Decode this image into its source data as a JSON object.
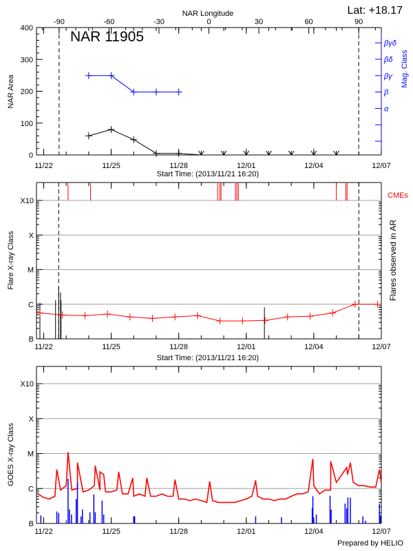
{
  "header": {
    "top_axis_title": "NAR Longitude",
    "latitude": "Lat: +18.17",
    "region_label": "NAR 11905",
    "footer": "Prepared by HELIO"
  },
  "colors": {
    "area": "#000000",
    "mag": "#0000ff",
    "cme": "#ff0000",
    "flare_avg": "#ff0000",
    "flares": "#000000",
    "goes_long": "#ff0000",
    "goes_short": "#0000ff",
    "grid": "#a0a0a0"
  },
  "chart_data": [
    {
      "type": "line",
      "panel": "nar",
      "xlabel": "Start Time: (2013/11/21 16:20)",
      "ylabel": "NAR Area",
      "y2label": "Mag. Class",
      "x2label": "NAR Longitude",
      "xlim": [
        "11/21 16:20",
        "12/07 00:00"
      ],
      "ylim": [
        0,
        400
      ],
      "xticks": [
        "11/22",
        "11/25",
        "11/28",
        "12/01",
        "12/04",
        "12/07"
      ],
      "yticks": [
        "0",
        "100",
        "200",
        "300",
        "400"
      ],
      "x2ticks": [
        "-90",
        "-60",
        "-30",
        "0",
        "30",
        "60",
        "90"
      ],
      "x2lim": [
        -103.6,
        103.6
      ],
      "limb_longitudes": [
        -90,
        90
      ],
      "mag_ticks": [
        "",
        "",
        "α",
        "β",
        "βγ",
        "βδ",
        "βγδ"
      ],
      "area": [
        [
          "11/24 00:00",
          60
        ],
        [
          "11/25 00:00",
          80
        ],
        [
          "11/26 00:00",
          48
        ],
        [
          "11/27 00:00",
          5
        ],
        [
          "11/28 00:00",
          5
        ]
      ],
      "area_after": [
        "11/29 00:00",
        "11/30 00:00",
        "12/01 00:00",
        "12/02 00:00",
        "12/03 00:00",
        "12/04 00:00",
        "12/05 00:00"
      ],
      "mag_class": [
        [
          "11/24 00:00",
          "βγ"
        ],
        [
          "11/25 00:00",
          "βγ"
        ],
        [
          "11/26 00:00",
          "β"
        ],
        [
          "11/27 00:00",
          "β"
        ],
        [
          "11/28 00:00",
          "β"
        ]
      ]
    },
    {
      "type": "line",
      "panel": "flares",
      "xlabel": "Start Time: (2013/11/21 16:20)",
      "ylabel": "Flare X-ray Class",
      "y2label": "Flares observed in AR",
      "cme_label": "CMEs",
      "xlim": [
        "11/21 16:20",
        "12/07 00:00"
      ],
      "yscale": "log",
      "ylim": [
        1e-07,
        0.0001
      ],
      "yticks": [
        [
          "B",
          1e-07
        ],
        [
          "C",
          1e-06
        ],
        [
          "M",
          1e-05
        ],
        [
          "X",
          0.0001
        ],
        [
          "X10",
          0.001
        ]
      ],
      "grid": true,
      "xticks": [
        "11/22",
        "11/25",
        "11/28",
        "12/01",
        "12/04",
        "12/07"
      ],
      "limb_times": [
        "11/22 16:00",
        "12/06 00:00"
      ],
      "avg_flux": [
        [
          "11/21 20:00",
          5.6e-07
        ],
        [
          "11/22 20:00",
          4.9e-07
        ],
        [
          "11/23 20:00",
          4.7e-07
        ],
        [
          "11/24 20:00",
          5.2e-07
        ],
        [
          "11/25 20:00",
          4.3e-07
        ],
        [
          "11/26 20:00",
          3.9e-07
        ],
        [
          "11/27 20:00",
          4.3e-07
        ],
        [
          "11/28 20:00",
          4.7e-07
        ],
        [
          "11/29 20:00",
          3.3e-07
        ],
        [
          "11/30 20:00",
          3.3e-07
        ],
        [
          "12/01 20:00",
          3.4e-07
        ],
        [
          "12/02 20:00",
          4.3e-07
        ],
        [
          "12/03 20:00",
          4.5e-07
        ],
        [
          "12/04 20:00",
          5.6e-07
        ],
        [
          "12/05 20:00",
          1e-06
        ],
        [
          "12/06 20:00",
          1e-06
        ]
      ],
      "flares": [
        [
          "11/21 20:00",
          1.1e-06
        ],
        [
          "11/22 12:40",
          1.3e-06
        ],
        [
          "11/22 16:00",
          3.2e-06
        ],
        [
          "11/22 18:00",
          2.2e-06
        ],
        [
          "11/22 18:30",
          1.3e-06
        ],
        [
          "12/01 19:20",
          8.2e-07
        ]
      ],
      "cmes": [
        "11/23 02:00",
        "11/24 02:00",
        "11/29 17:30",
        "11/29 19:50",
        "11/29 21:10",
        "11/30 12:30",
        "11/30 14:00",
        "11/30 15:40",
        "12/05 00:00",
        "12/05 10:10",
        "12/05 11:30"
      ]
    },
    {
      "type": "line",
      "panel": "goes",
      "ylabel": "GOES X-ray Class",
      "xlim": [
        "11/21 16:20",
        "12/07 00:00"
      ],
      "yscale": "log",
      "ylim": [
        1e-07,
        0.0001
      ],
      "yticks": [
        [
          "B",
          1e-07
        ],
        [
          "C",
          1e-06
        ],
        [
          "M",
          1e-05
        ],
        [
          "X",
          0.0001
        ],
        [
          "X10",
          0.001
        ]
      ],
      "grid": true,
      "xticks": [
        "11/22",
        "11/25",
        "11/28",
        "12/01",
        "12/04",
        "12/07"
      ],
      "long_channel": [
        [
          "11/21 18:00",
          7e-07
        ],
        [
          "11/22 00:00",
          5.5e-07
        ],
        [
          "11/22 06:00",
          5e-07
        ],
        [
          "11/22 12:00",
          6e-07
        ],
        [
          "11/22 18:00",
          9e-07
        ],
        [
          "11/23 00:00",
          1.2e-06
        ],
        [
          "11/23 06:00",
          9e-07
        ],
        [
          "11/23 12:00",
          1e-06
        ],
        [
          "11/23 18:00",
          8e-07
        ],
        [
          "11/24 00:00",
          9e-07
        ],
        [
          "11/24 06:00",
          1.2e-06
        ],
        [
          "11/24 12:00",
          9e-07
        ],
        [
          "11/24 18:00",
          8e-07
        ],
        [
          "11/25 00:00",
          8e-07
        ],
        [
          "11/25 06:00",
          9e-07
        ],
        [
          "11/25 12:00",
          7e-07
        ],
        [
          "11/25 18:00",
          7e-07
        ],
        [
          "11/26 00:00",
          6e-07
        ],
        [
          "11/26 06:00",
          7e-07
        ],
        [
          "11/26 12:00",
          6e-07
        ],
        [
          "11/26 18:00",
          6e-07
        ],
        [
          "11/27 00:00",
          6e-07
        ],
        [
          "11/27 06:00",
          7e-07
        ],
        [
          "11/27 12:00",
          6e-07
        ],
        [
          "11/27 18:00",
          6e-07
        ],
        [
          "11/28 00:00",
          5e-07
        ],
        [
          "11/28 06:00",
          5e-07
        ],
        [
          "11/28 12:00",
          4.5e-07
        ],
        [
          "11/28 18:00",
          5e-07
        ],
        [
          "11/29 00:00",
          4.5e-07
        ],
        [
          "11/29 06:00",
          4e-07
        ],
        [
          "11/29 12:00",
          4.5e-07
        ],
        [
          "11/29 18:00",
          4e-07
        ],
        [
          "11/30 00:00",
          4e-07
        ],
        [
          "11/30 06:00",
          4e-07
        ],
        [
          "11/30 12:00",
          4e-07
        ],
        [
          "11/30 18:00",
          4.5e-07
        ],
        [
          "12/01 00:00",
          5e-07
        ],
        [
          "12/01 06:00",
          6e-07
        ],
        [
          "12/01 12:00",
          6e-07
        ],
        [
          "12/01 18:00",
          5e-07
        ],
        [
          "12/02 00:00",
          5e-07
        ],
        [
          "12/02 06:00",
          4.5e-07
        ],
        [
          "12/02 12:00",
          5e-07
        ],
        [
          "12/02 18:00",
          5e-07
        ],
        [
          "12/03 00:00",
          6e-07
        ],
        [
          "12/03 06:00",
          7e-07
        ],
        [
          "12/03 12:00",
          7e-07
        ],
        [
          "12/03 18:00",
          8e-07
        ],
        [
          "12/04 00:00",
          1.2e-06
        ],
        [
          "12/04 06:00",
          7e-07
        ],
        [
          "12/04 12:00",
          9e-07
        ],
        [
          "12/04 18:00",
          9e-07
        ],
        [
          "12/05 00:00",
          1.5e-06
        ],
        [
          "12/05 06:00",
          2.5e-06
        ],
        [
          "12/05 12:00",
          2.5e-06
        ],
        [
          "12/05 18:00",
          1.5e-06
        ],
        [
          "12/06 00:00",
          1.2e-06
        ],
        [
          "12/06 06:00",
          1.2e-06
        ],
        [
          "12/06 12:00",
          1.1e-06
        ],
        [
          "12/06 18:00",
          1.1e-06
        ],
        [
          "12/06 23:50",
          1.5e-06
        ]
      ],
      "long_channel_peaks": [
        [
          "11/22 14:00",
          3.5e-06
        ],
        [
          "11/23 02:00",
          1.1e-05
        ],
        [
          "11/23 12:00",
          5.5e-06
        ],
        [
          "11/24 07:00",
          4.5e-06
        ],
        [
          "11/24 12:00",
          3e-06
        ],
        [
          "11/24 16:00",
          2.5e-06
        ],
        [
          "11/25 08:00",
          3e-06
        ],
        [
          "11/25 23:00",
          2e-06
        ],
        [
          "11/26 14:00",
          2e-06
        ],
        [
          "11/27 20:00",
          1.8e-06
        ],
        [
          "11/29 09:00",
          1.6e-06
        ],
        [
          "12/01 10:00",
          1.7e-06
        ],
        [
          "12/03 23:00",
          7e-06
        ],
        [
          "12/04 18:00",
          6e-06
        ],
        [
          "12/05 11:00",
          4e-06
        ],
        [
          "12/05 15:00",
          5.5e-06
        ],
        [
          "12/06 22:00",
          3.5e-06
        ]
      ],
      "short_channel_spikes": [
        [
          "11/21 21:00",
          1.7e-07
        ],
        [
          "11/22 14:00",
          2.2e-07
        ],
        [
          "11/22 16:00",
          2e-07
        ],
        [
          "11/23 02:00",
          1.9e-06
        ],
        [
          "11/23 03:30",
          2.5e-07
        ],
        [
          "11/23 05:40",
          1.8e-07
        ],
        [
          "11/23 10:40",
          5e-07
        ],
        [
          "11/23 12:00",
          1.5e-06
        ],
        [
          "11/23 15:50",
          1.6e-07
        ],
        [
          "11/23 17:20",
          2.5e-07
        ],
        [
          "11/24 01:20",
          2.1e-07
        ],
        [
          "11/24 05:30",
          6.8e-07
        ],
        [
          "11/24 07:00",
          2.1e-07
        ],
        [
          "11/24 14:20",
          4.5e-07
        ],
        [
          "11/24 16:00",
          1.8e-07
        ],
        [
          "11/26 00:00",
          1.6e-07
        ],
        [
          "11/26 01:00",
          1.6e-07
        ],
        [
          "12/01 10:00",
          1.6e-07
        ],
        [
          "12/02 13:30",
          1.5e-07
        ],
        [
          "12/03 22:20",
          2.8e-07
        ],
        [
          "12/03 23:00",
          6e-07
        ],
        [
          "12/04 02:40",
          1.8e-07
        ],
        [
          "12/04 17:20",
          6.2e-07
        ],
        [
          "12/04 18:30",
          2.5e-07
        ],
        [
          "12/05 09:20",
          3.7e-07
        ],
        [
          "12/05 11:00",
          2.7e-07
        ],
        [
          "12/05 12:20",
          5.5e-07
        ],
        [
          "12/05 15:00",
          5.5e-07
        ],
        [
          "12/06 04:20",
          1.6e-07
        ],
        [
          "12/06 07:10",
          1.2e-07
        ],
        [
          "12/06 22:00",
          3.7e-07
        ],
        [
          "12/06 23:00",
          1.7e-07
        ]
      ]
    }
  ]
}
